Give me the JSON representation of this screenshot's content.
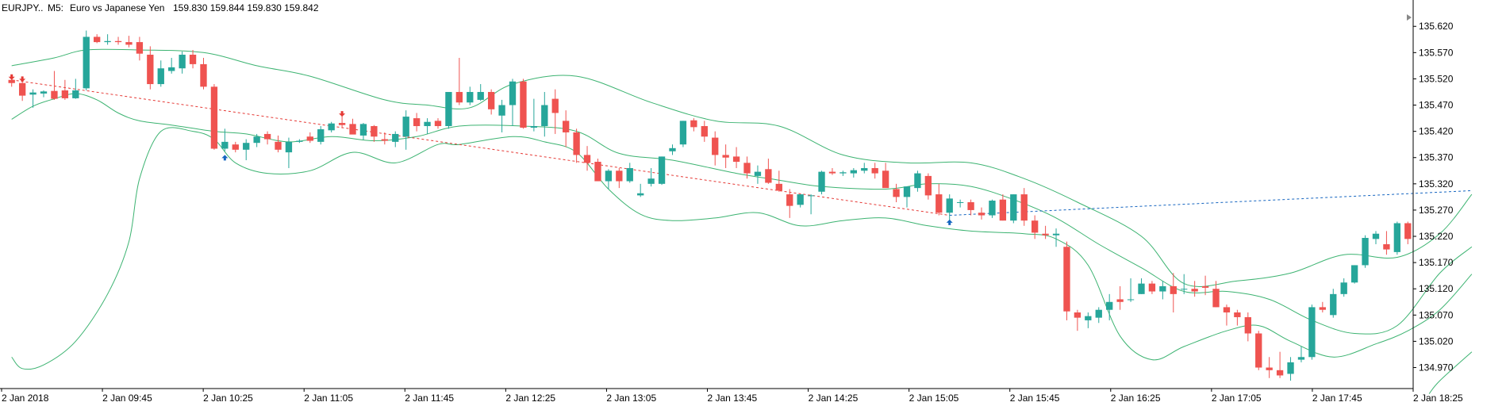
{
  "header": {
    "symbol": "EURJPY..",
    "timeframe": "M5:",
    "description": "Euro vs Japanese Yen",
    "ohlc": "159.830 159.844 159.830 159.842"
  },
  "colors": {
    "bull": "#26a69a",
    "bear": "#ef5350",
    "band": "#3cb371",
    "trend_down": "#e53935",
    "trend_up": "#1565c0",
    "arrow_up": "#1565c0",
    "arrow_down": "#e53935",
    "axis": "#000000"
  },
  "chart_data": {
    "type": "candlestick",
    "y_ticks": [
      "135.620",
      "135.570",
      "135.520",
      "135.470",
      "135.420",
      "135.370",
      "135.320",
      "135.270",
      "135.220",
      "135.170",
      "135.120",
      "135.070",
      "135.020",
      "134.970"
    ],
    "ylim": [
      134.93,
      135.64
    ],
    "x_ticks": [
      "2 Jan 2018",
      "2 Jan 09:45",
      "2 Jan 10:25",
      "2 Jan 11:05",
      "2 Jan 11:45",
      "2 Jan 12:25",
      "2 Jan 13:05",
      "2 Jan 13:45",
      "2 Jan 14:25",
      "2 Jan 15:05",
      "2 Jan 15:45",
      "2 Jan 16:25",
      "2 Jan 17:05",
      "2 Jan 17:45",
      "2 Jan 18:25"
    ],
    "candles": [
      [
        135.518,
        135.525,
        135.505,
        135.512
      ],
      [
        135.512,
        135.515,
        135.478,
        135.488
      ],
      [
        135.49,
        135.5,
        135.465,
        135.494
      ],
      [
        135.492,
        135.498,
        135.485,
        135.496
      ],
      [
        135.497,
        135.535,
        135.48,
        135.482
      ],
      [
        135.498,
        135.518,
        135.48,
        135.483
      ],
      [
        135.483,
        135.52,
        135.482,
        135.498
      ],
      [
        135.502,
        135.612,
        135.498,
        135.6
      ],
      [
        135.6,
        135.605,
        135.588,
        135.59
      ],
      [
        135.59,
        135.605,
        135.585,
        135.592
      ],
      [
        135.592,
        135.6,
        135.585,
        135.59
      ],
      [
        135.59,
        135.602,
        135.58,
        135.585
      ],
      [
        135.59,
        135.6,
        135.555,
        135.568
      ],
      [
        135.566,
        135.582,
        135.5,
        135.51
      ],
      [
        135.51,
        135.555,
        135.505,
        135.54
      ],
      [
        135.535,
        135.56,
        135.53,
        135.542
      ],
      [
        135.54,
        135.572,
        135.53,
        135.566
      ],
      [
        135.566,
        135.575,
        135.54,
        135.548
      ],
      [
        135.548,
        135.56,
        135.5,
        135.505
      ],
      [
        135.505,
        135.51,
        135.385,
        135.387
      ],
      [
        135.387,
        135.425,
        135.382,
        135.4
      ],
      [
        135.395,
        135.4,
        135.38,
        135.385
      ],
      [
        135.385,
        135.405,
        135.365,
        135.398
      ],
      [
        135.398,
        135.415,
        135.39,
        135.41
      ],
      [
        135.415,
        135.42,
        135.395,
        135.405
      ],
      [
        135.4,
        135.412,
        135.38,
        135.385
      ],
      [
        135.38,
        135.408,
        135.35,
        135.4
      ],
      [
        135.4,
        135.405,
        135.398,
        135.402
      ],
      [
        135.41,
        135.418,
        135.398,
        135.402
      ],
      [
        135.4,
        135.43,
        135.395,
        135.424
      ],
      [
        135.422,
        135.438,
        135.418,
        135.435
      ],
      [
        135.436,
        135.45,
        135.426,
        135.432
      ],
      [
        135.434,
        135.444,
        135.42,
        135.414
      ],
      [
        135.412,
        135.436,
        135.404,
        135.434
      ],
      [
        135.43,
        135.432,
        135.4,
        135.41
      ],
      [
        135.405,
        135.418,
        135.395,
        135.402
      ],
      [
        135.4,
        135.42,
        135.39,
        135.415
      ],
      [
        135.41,
        135.46,
        135.385,
        135.448
      ],
      [
        135.445,
        135.455,
        135.42,
        135.43
      ],
      [
        135.43,
        135.445,
        135.415,
        135.438
      ],
      [
        135.44,
        135.445,
        135.425,
        135.43
      ],
      [
        135.43,
        135.495,
        135.425,
        135.495
      ],
      [
        135.495,
        135.56,
        135.47,
        135.475
      ],
      [
        135.475,
        135.505,
        135.47,
        135.495
      ],
      [
        135.48,
        135.51,
        135.478,
        135.495
      ],
      [
        135.495,
        135.5,
        135.452,
        135.462
      ],
      [
        135.45,
        135.48,
        135.418,
        135.47
      ],
      [
        135.47,
        135.52,
        135.43,
        135.515
      ],
      [
        135.515,
        135.52,
        135.425,
        135.427
      ],
      [
        135.427,
        135.482,
        135.42,
        135.43
      ],
      [
        135.43,
        135.495,
        135.41,
        135.47
      ],
      [
        135.482,
        135.5,
        135.415,
        135.455
      ],
      [
        135.44,
        135.46,
        135.39,
        135.418
      ],
      [
        135.418,
        135.425,
        135.36,
        135.375
      ],
      [
        135.375,
        135.392,
        135.345,
        135.36
      ],
      [
        135.362,
        135.368,
        135.325,
        135.325
      ],
      [
        135.325,
        135.348,
        135.31,
        135.345
      ],
      [
        135.345,
        135.35,
        135.312,
        135.325
      ],
      [
        135.325,
        135.36,
        135.322,
        135.35
      ],
      [
        135.298,
        135.32,
        135.295,
        135.302
      ],
      [
        135.32,
        135.35,
        135.315,
        135.33
      ],
      [
        135.32,
        135.372,
        135.318,
        135.372
      ],
      [
        135.382,
        135.395,
        135.375,
        135.388
      ],
      [
        135.395,
        135.44,
        135.39,
        135.44
      ],
      [
        135.441,
        135.445,
        135.42,
        135.428
      ],
      [
        135.43,
        135.44,
        135.4,
        135.41
      ],
      [
        135.408,
        135.42,
        135.355,
        135.375
      ],
      [
        135.375,
        135.395,
        135.35,
        135.37
      ],
      [
        135.372,
        135.39,
        135.35,
        135.362
      ],
      [
        135.36,
        135.372,
        135.33,
        135.34
      ],
      [
        135.335,
        135.355,
        135.32,
        135.343
      ],
      [
        135.348,
        135.368,
        135.32,
        135.322
      ],
      [
        135.32,
        135.345,
        135.305,
        135.307
      ],
      [
        135.3,
        135.31,
        135.255,
        135.278
      ],
      [
        135.28,
        135.3,
        135.275,
        135.3
      ],
      [
        135.298,
        135.3,
        135.262,
        135.298
      ],
      [
        135.305,
        135.345,
        135.3,
        135.343
      ],
      [
        135.343,
        135.35,
        135.337,
        135.34
      ],
      [
        135.34,
        135.345,
        135.335,
        135.342
      ],
      [
        135.34,
        135.35,
        135.332,
        135.346
      ],
      [
        135.345,
        135.36,
        135.34,
        135.35
      ],
      [
        135.35,
        135.36,
        135.33,
        135.34
      ],
      [
        135.345,
        135.36,
        135.315,
        135.312
      ],
      [
        135.31,
        135.32,
        135.285,
        135.295
      ],
      [
        135.295,
        135.315,
        135.275,
        135.315
      ],
      [
        135.312,
        135.345,
        135.305,
        135.34
      ],
      [
        135.335,
        135.34,
        135.29,
        135.298
      ],
      [
        135.3,
        135.32,
        135.26,
        135.265
      ],
      [
        135.265,
        135.3,
        135.25,
        135.292
      ],
      [
        135.285,
        135.29,
        135.275,
        135.285
      ],
      [
        135.285,
        135.29,
        135.26,
        135.27
      ],
      [
        135.265,
        135.275,
        135.252,
        135.26
      ],
      [
        135.26,
        135.29,
        135.255,
        135.288
      ],
      [
        135.29,
        135.3,
        135.25,
        135.25
      ],
      [
        135.25,
        135.3,
        135.245,
        135.3
      ],
      [
        135.3,
        135.312,
        135.24,
        135.25
      ],
      [
        135.25,
        135.26,
        135.215,
        135.227
      ],
      [
        135.225,
        135.24,
        135.215,
        135.222
      ],
      [
        135.222,
        135.235,
        135.2,
        135.225
      ],
      [
        135.2,
        135.21,
        135.06,
        135.077
      ],
      [
        135.075,
        135.08,
        135.04,
        135.065
      ],
      [
        135.06,
        135.075,
        135.045,
        135.068
      ],
      [
        135.065,
        135.085,
        135.055,
        135.08
      ],
      [
        135.08,
        135.11,
        135.06,
        135.095
      ],
      [
        135.1,
        135.125,
        135.08,
        135.095
      ],
      [
        135.1,
        135.14,
        135.095,
        135.1
      ],
      [
        135.11,
        135.14,
        135.11,
        135.13
      ],
      [
        135.13,
        135.135,
        135.11,
        135.115
      ],
      [
        135.115,
        135.135,
        135.1,
        135.125
      ],
      [
        135.125,
        135.15,
        135.075,
        135.11
      ],
      [
        135.12,
        135.148,
        135.11,
        135.12
      ],
      [
        135.12,
        135.135,
        135.105,
        135.115
      ],
      [
        135.125,
        135.145,
        135.108,
        135.122
      ],
      [
        135.12,
        135.135,
        135.085,
        135.085
      ],
      [
        135.085,
        135.09,
        135.05,
        135.075
      ],
      [
        135.075,
        135.08,
        135.05,
        135.066
      ],
      [
        135.066,
        135.075,
        135.02,
        135.035
      ],
      [
        135.035,
        135.04,
        134.965,
        134.97
      ],
      [
        134.97,
        134.99,
        134.95,
        134.965
      ],
      [
        134.965,
        135.0,
        134.95,
        134.955
      ],
      [
        134.958,
        134.99,
        134.945,
        134.98
      ],
      [
        134.985,
        135.01,
        134.98,
        134.99
      ],
      [
        134.99,
        135.09,
        134.985,
        135.085
      ],
      [
        135.085,
        135.095,
        135.075,
        135.08
      ],
      [
        135.07,
        135.12,
        135.065,
        135.11
      ],
      [
        135.11,
        135.14,
        135.105,
        135.132
      ],
      [
        135.132,
        135.165,
        135.13,
        135.165
      ],
      [
        135.165,
        135.222,
        135.16,
        135.217
      ],
      [
        135.215,
        135.23,
        135.205,
        135.225
      ],
      [
        135.205,
        135.23,
        135.185,
        135.195
      ],
      [
        135.19,
        135.248,
        135.185,
        135.245
      ],
      [
        135.245,
        135.248,
        135.205,
        135.215
      ]
    ],
    "bands": {
      "upper": [
        [
          0,
          135.545
        ],
        [
          4,
          135.56
        ],
        [
          7,
          135.575
        ],
        [
          12,
          135.575
        ],
        [
          18,
          135.57
        ],
        [
          23,
          135.545
        ],
        [
          28,
          135.525
        ],
        [
          35,
          135.48
        ],
        [
          39,
          135.47
        ],
        [
          43,
          135.465
        ],
        [
          47,
          135.51
        ],
        [
          53,
          135.525
        ],
        [
          60,
          135.475
        ],
        [
          66,
          135.44
        ],
        [
          72,
          135.43
        ],
        [
          78,
          135.375
        ],
        [
          84,
          135.36
        ],
        [
          90,
          135.36
        ],
        [
          95,
          135.33
        ],
        [
          100,
          135.285
        ],
        [
          106,
          135.22
        ],
        [
          110,
          135.13
        ],
        [
          115,
          135.135
        ],
        [
          120,
          135.15
        ],
        [
          125,
          135.185
        ],
        [
          130,
          135.18
        ],
        [
          134,
          135.225
        ],
        [
          137,
          135.3
        ]
      ],
      "middle": [
        [
          0,
          135.443
        ],
        [
          2,
          135.468
        ],
        [
          4,
          135.482
        ],
        [
          6,
          135.492
        ],
        [
          8,
          135.48
        ],
        [
          10,
          135.455
        ],
        [
          12,
          135.44
        ],
        [
          15,
          135.432
        ],
        [
          19,
          135.42
        ],
        [
          22,
          135.415
        ],
        [
          26,
          135.4
        ],
        [
          30,
          135.41
        ],
        [
          34,
          135.402
        ],
        [
          38,
          135.41
        ],
        [
          42,
          135.43
        ],
        [
          48,
          135.43
        ],
        [
          53,
          135.42
        ],
        [
          57,
          135.378
        ],
        [
          62,
          135.365
        ],
        [
          68,
          135.34
        ],
        [
          72,
          135.327
        ],
        [
          76,
          135.315
        ],
        [
          82,
          135.31
        ],
        [
          86,
          135.32
        ],
        [
          90,
          135.315
        ],
        [
          94,
          135.29
        ],
        [
          98,
          135.255
        ],
        [
          102,
          135.205
        ],
        [
          106,
          135.16
        ],
        [
          110,
          135.115
        ],
        [
          114,
          135.115
        ],
        [
          118,
          135.1
        ],
        [
          122,
          135.06
        ],
        [
          126,
          135.035
        ],
        [
          130,
          135.05
        ],
        [
          134,
          135.15
        ],
        [
          137,
          135.2
        ]
      ],
      "lower": [
        [
          0,
          134.99
        ],
        [
          1,
          134.968
        ],
        [
          3,
          134.975
        ],
        [
          6,
          135.02
        ],
        [
          9,
          135.11
        ],
        [
          11,
          135.21
        ],
        [
          12,
          135.33
        ],
        [
          14,
          135.42
        ],
        [
          17,
          135.42
        ],
        [
          19,
          135.405
        ],
        [
          21,
          135.36
        ],
        [
          24,
          135.34
        ],
        [
          28,
          135.345
        ],
        [
          32,
          135.38
        ],
        [
          36,
          135.36
        ],
        [
          40,
          135.395
        ],
        [
          42,
          135.395
        ],
        [
          47,
          135.41
        ],
        [
          50,
          135.4
        ],
        [
          53,
          135.38
        ],
        [
          56,
          135.31
        ],
        [
          59,
          135.262
        ],
        [
          62,
          135.25
        ],
        [
          66,
          135.255
        ],
        [
          70,
          135.265
        ],
        [
          74,
          135.24
        ],
        [
          78,
          135.25
        ],
        [
          82,
          135.255
        ],
        [
          86,
          135.24
        ],
        [
          90,
          135.23
        ],
        [
          95,
          135.225
        ],
        [
          98,
          135.215
        ],
        [
          101,
          135.165
        ],
        [
          104,
          135.03
        ],
        [
          107,
          134.985
        ],
        [
          110,
          135.01
        ],
        [
          114,
          135.04
        ],
        [
          117,
          135.05
        ],
        [
          120,
          135.02
        ],
        [
          124,
          134.99
        ],
        [
          128,
          135.015
        ],
        [
          131,
          135.04
        ],
        [
          134,
          135.08
        ],
        [
          137,
          135.148
        ]
      ],
      "extra_lower": [
        [
          133,
          134.92
        ],
        [
          134,
          134.945
        ],
        [
          137,
          135.0
        ]
      ]
    },
    "trend_lines": [
      {
        "from": [
          0,
          135.518
        ],
        "to": [
          88,
          135.26
        ],
        "color": "trend_down"
      },
      {
        "from": [
          88,
          135.26
        ],
        "to": [
          137,
          135.307
        ],
        "color": "trend_up"
      }
    ],
    "arrows": [
      {
        "i": 0,
        "price": 135.518,
        "dir": "down"
      },
      {
        "i": 1,
        "price": 135.514,
        "dir": "down"
      },
      {
        "i": 20,
        "price": 135.375,
        "dir": "up"
      },
      {
        "i": 31,
        "price": 135.448,
        "dir": "down"
      },
      {
        "i": 88,
        "price": 135.252,
        "dir": "up"
      }
    ]
  }
}
